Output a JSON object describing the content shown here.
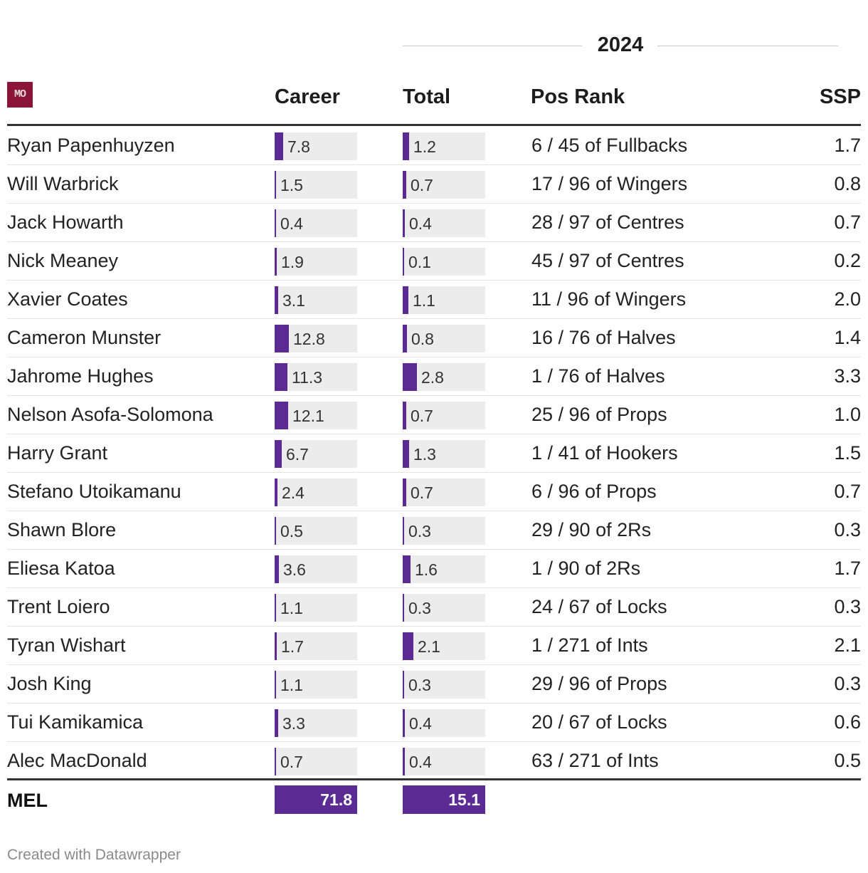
{
  "group_header": "2024",
  "logo_text": "MO",
  "columns": {
    "career": "Career",
    "total": "Total",
    "pos_rank": "Pos Rank",
    "ssp": "SSP"
  },
  "chart_data": {
    "type": "table",
    "career_max": 12.8,
    "total_max": 2.8,
    "rows": [
      {
        "name": "Ryan Papenhuyzen",
        "career": 7.8,
        "total": 1.2,
        "pos_rank": "6 / 45 of Fullbacks",
        "ssp": "1.7"
      },
      {
        "name": "Will Warbrick",
        "career": 1.5,
        "total": 0.7,
        "pos_rank": "17 / 96 of Wingers",
        "ssp": "0.8"
      },
      {
        "name": "Jack Howarth",
        "career": 0.4,
        "total": 0.4,
        "pos_rank": "28 / 97 of Centres",
        "ssp": "0.7"
      },
      {
        "name": "Nick Meaney",
        "career": 1.9,
        "total": 0.1,
        "pos_rank": "45 / 97 of Centres",
        "ssp": "0.2"
      },
      {
        "name": "Xavier Coates",
        "career": 3.1,
        "total": 1.1,
        "pos_rank": "11 / 96 of Wingers",
        "ssp": "2.0"
      },
      {
        "name": "Cameron Munster",
        "career": 12.8,
        "total": 0.8,
        "pos_rank": "16 / 76 of Halves",
        "ssp": "1.4"
      },
      {
        "name": "Jahrome Hughes",
        "career": 11.3,
        "total": 2.8,
        "pos_rank": "1 / 76 of Halves",
        "ssp": "3.3"
      },
      {
        "name": "Nelson Asofa-Solomona",
        "career": 12.1,
        "total": 0.7,
        "pos_rank": "25 / 96 of Props",
        "ssp": "1.0"
      },
      {
        "name": "Harry Grant",
        "career": 6.7,
        "total": 1.3,
        "pos_rank": "1 / 41 of Hookers",
        "ssp": "1.5"
      },
      {
        "name": "Stefano Utoikamanu",
        "career": 2.4,
        "total": 0.7,
        "pos_rank": "6 / 96 of Props",
        "ssp": "0.7"
      },
      {
        "name": "Shawn Blore",
        "career": 0.5,
        "total": 0.3,
        "pos_rank": "29 / 90 of 2Rs",
        "ssp": "0.3"
      },
      {
        "name": "Eliesa Katoa",
        "career": 3.6,
        "total": 1.6,
        "pos_rank": "1 / 90 of 2Rs",
        "ssp": "1.7"
      },
      {
        "name": "Trent Loiero",
        "career": 1.1,
        "total": 0.3,
        "pos_rank": "24 / 67 of Locks",
        "ssp": "0.3"
      },
      {
        "name": "Tyran Wishart",
        "career": 1.7,
        "total": 2.1,
        "pos_rank": "1 / 271 of Ints",
        "ssp": "2.1"
      },
      {
        "name": "Josh King",
        "career": 1.1,
        "total": 0.3,
        "pos_rank": "29 / 96 of Props",
        "ssp": "0.3"
      },
      {
        "name": "Tui Kamikamica",
        "career": 3.3,
        "total": 0.4,
        "pos_rank": "20 / 67 of Locks",
        "ssp": "0.6"
      },
      {
        "name": "Alec MacDonald",
        "career": 0.7,
        "total": 0.4,
        "pos_rank": "63 / 271 of Ints",
        "ssp": "0.5"
      }
    ],
    "team_total": {
      "label": "MEL",
      "career": "71.8",
      "total": "15.1"
    }
  },
  "credit": "Created with Datawrapper",
  "colors": {
    "bar": "#5b2a92",
    "bar_background": "#ececec",
    "logo": "#8a1538"
  }
}
